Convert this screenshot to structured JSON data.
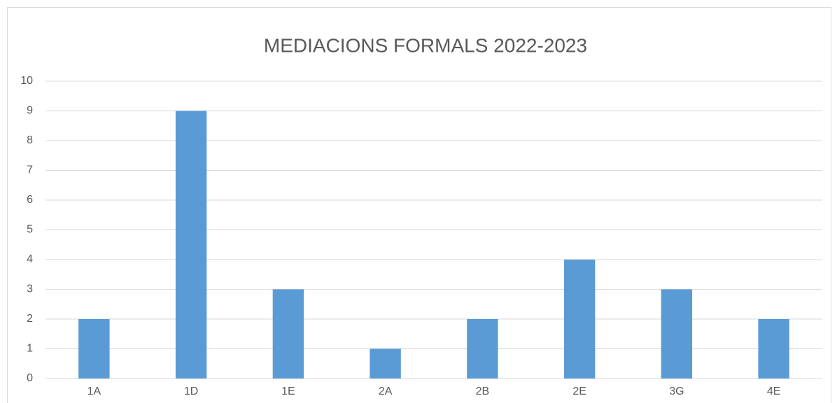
{
  "chart_data": {
    "type": "bar",
    "title": "MEDIACIONS FORMALS 2022-2023",
    "categories": [
      "1A",
      "1D",
      "1E",
      "2A",
      "2B",
      "2E",
      "3G",
      "4E"
    ],
    "values": [
      2,
      9,
      3,
      1,
      2,
      4,
      3,
      2
    ],
    "color": "#5b9bd5",
    "ylim": [
      0,
      10
    ],
    "yticks": [
      0,
      1,
      2,
      3,
      4,
      5,
      6,
      7,
      8,
      9,
      10
    ],
    "grid": true
  }
}
